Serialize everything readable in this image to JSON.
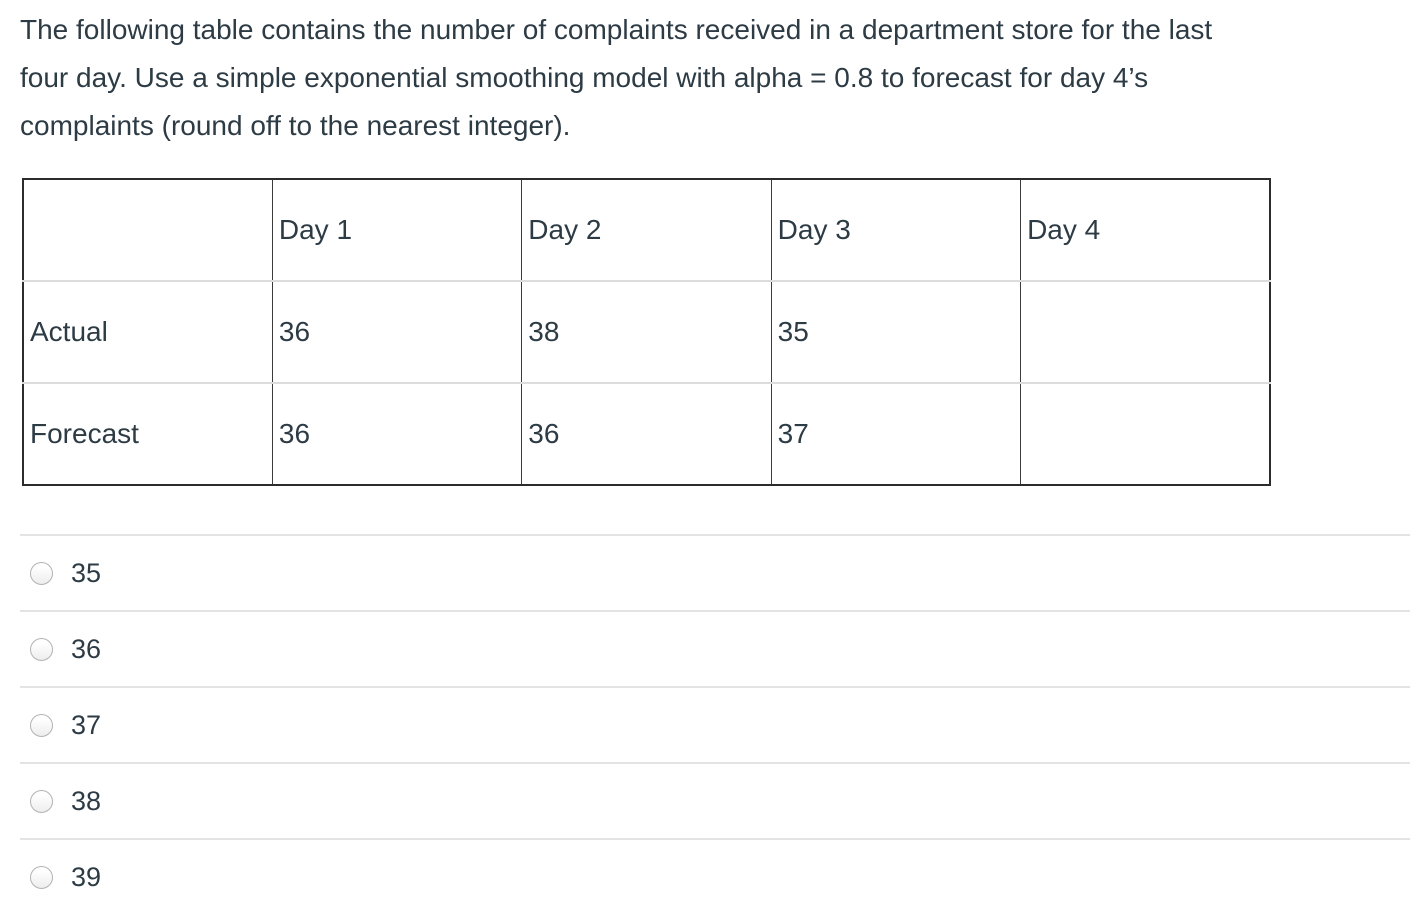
{
  "question": {
    "text": "The following table contains the number of complaints received in a department store for the last four day. Use a simple exponential smoothing model with alpha = 0.8 to forecast for day 4’s complaints (round off to the nearest integer).",
    "lines": [
      "The following table contains the number of complaints received in a department store for the last",
      "four day. Use a simple exponential smoothing model with alpha = 0.8 to forecast for day 4’s",
      "complaints (round off to the nearest integer)."
    ]
  },
  "table": {
    "header": [
      "",
      "Day 1",
      "Day 2",
      "Day 3",
      "Day 4"
    ],
    "rows": [
      {
        "label": "Actual",
        "values": [
          "36",
          "38",
          "35",
          ""
        ]
      },
      {
        "label": "Forecast",
        "values": [
          "36",
          "36",
          "37",
          ""
        ]
      }
    ]
  },
  "options": [
    {
      "label": "35",
      "selected": false
    },
    {
      "label": "36",
      "selected": false
    },
    {
      "label": "37",
      "selected": false
    },
    {
      "label": "38",
      "selected": false
    },
    {
      "label": "39",
      "selected": false
    }
  ],
  "colors": {
    "text": "#2D3B45",
    "table_outer_border": "#2c2c2c",
    "table_column_border": "#3b3b3b",
    "table_row_border": "#dcdcdc",
    "option_divider": "#e3e3e3",
    "radio_border": "#b3b3b3"
  }
}
